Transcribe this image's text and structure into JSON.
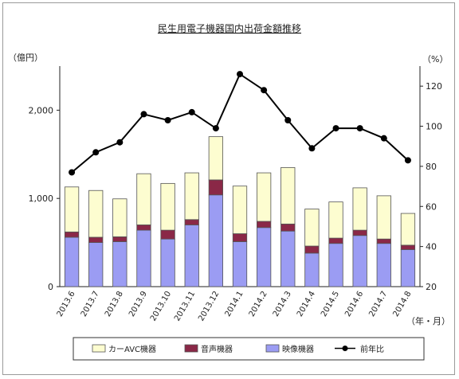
{
  "chart_data": {
    "type": "bar",
    "title": "民生用電子機器国内出荷金額推移",
    "y_left_label": "（億円）",
    "y_right_label": "（%）",
    "x_unit_label": "（年・月）",
    "categories": [
      "2013.6",
      "2013.7",
      "2013.8",
      "2013.9",
      "2013.10",
      "2013.11",
      "2013.12",
      "2014.1",
      "2014.2",
      "2014.3",
      "2014.4",
      "2014.5",
      "2014.6",
      "2014.7",
      "2014.8"
    ],
    "left_axis": {
      "min": 0,
      "max": 2500,
      "ticks": [
        0,
        1000,
        2000
      ],
      "tick_labels": [
        "0",
        "1,000",
        "2,000"
      ]
    },
    "right_axis": {
      "min": 20,
      "max": 130,
      "ticks": [
        20,
        40,
        60,
        80,
        100,
        120
      ],
      "tick_labels": [
        "20",
        "40",
        "60",
        "80",
        "100",
        "120"
      ]
    },
    "series": [
      {
        "name": "映像機器",
        "kind": "bar",
        "color": "#9b9cf3",
        "values": [
          560,
          500,
          510,
          640,
          540,
          700,
          1040,
          510,
          670,
          630,
          380,
          490,
          580,
          490,
          420
        ]
      },
      {
        "name": "音声機器",
        "kind": "bar",
        "color": "#8a2847",
        "values": [
          60,
          60,
          55,
          60,
          100,
          60,
          170,
          90,
          70,
          80,
          80,
          60,
          60,
          50,
          50
        ]
      },
      {
        "name": "カーAVC機器",
        "kind": "bar",
        "color": "#fdfdd0",
        "values": [
          510,
          530,
          430,
          580,
          530,
          530,
          490,
          540,
          550,
          640,
          420,
          410,
          480,
          490,
          360
        ]
      },
      {
        "name": "前年比",
        "kind": "line",
        "color": "#000000",
        "axis": "right",
        "values": [
          77,
          87,
          92,
          106,
          103,
          107,
          99,
          126,
          118,
          103,
          89,
          99,
          99,
          94,
          83
        ]
      }
    ],
    "grid": false,
    "legend_position": "bottom"
  }
}
